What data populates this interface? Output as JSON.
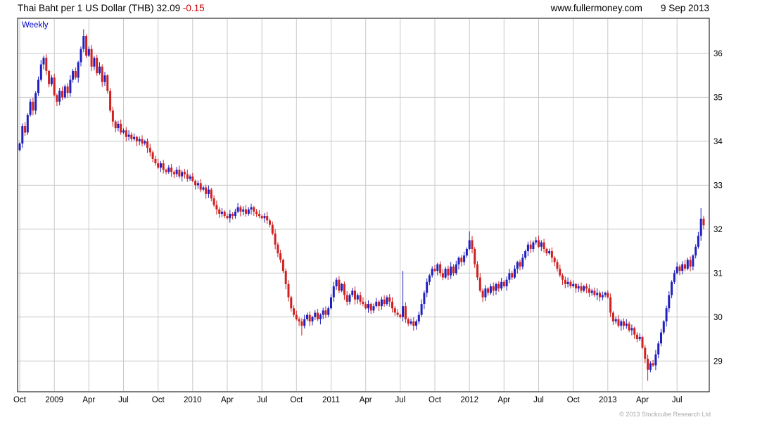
{
  "header": {
    "title": "Thai Baht per 1 US Dollar (THB)",
    "price": "32.09",
    "change": "-0.15",
    "site": "www.fullermoney.com",
    "date": "9 Sep 2013"
  },
  "chart": {
    "frequency_label": "Weekly",
    "copyright": "© 2013 Stockcube Research Ltd"
  },
  "chart_data": {
    "type": "candlestick",
    "frequency": "weekly",
    "title": "Thai Baht per 1 US Dollar (THB)",
    "last_close": 32.09,
    "last_change": -0.15,
    "date_range": "Oct 2008 - Sep 2013",
    "grid": true,
    "y_axis": {
      "side": "right",
      "ticks": [
        29,
        30,
        31,
        32,
        33,
        34,
        35,
        36
      ],
      "plot_min": 28.3,
      "plot_max": 36.8
    },
    "x_axis": {
      "ticks": [
        {
          "label": "Oct",
          "week": 0
        },
        {
          "label": "2009",
          "week": 13
        },
        {
          "label": "Apr",
          "week": 26
        },
        {
          "label": "Jul",
          "week": 39
        },
        {
          "label": "Oct",
          "week": 52
        },
        {
          "label": "2010",
          "week": 65
        },
        {
          "label": "Apr",
          "week": 78
        },
        {
          "label": "Jul",
          "week": 91
        },
        {
          "label": "Oct",
          "week": 104
        },
        {
          "label": "2011",
          "week": 117
        },
        {
          "label": "Apr",
          "week": 130
        },
        {
          "label": "Jul",
          "week": 143
        },
        {
          "label": "Oct",
          "week": 156
        },
        {
          "label": "2012",
          "week": 169
        },
        {
          "label": "Apr",
          "week": 182
        },
        {
          "label": "Jul",
          "week": 195
        },
        {
          "label": "Oct",
          "week": 208
        },
        {
          "label": "2013",
          "week": 221
        },
        {
          "label": "Apr",
          "week": 234
        },
        {
          "label": "Jul",
          "week": 247
        }
      ]
    },
    "first_open": 33.8,
    "weekly_closes": [
      33.95,
      34.35,
      34.2,
      34.6,
      34.9,
      34.7,
      35.1,
      35.4,
      35.75,
      35.9,
      35.6,
      35.3,
      35.45,
      35.05,
      34.9,
      35.15,
      35.0,
      35.25,
      35.1,
      35.4,
      35.6,
      35.45,
      35.8,
      36.1,
      36.4,
      35.95,
      36.1,
      35.7,
      35.9,
      35.55,
      35.7,
      35.35,
      35.5,
      35.15,
      34.7,
      34.45,
      34.3,
      34.4,
      34.2,
      34.25,
      34.1,
      34.15,
      34.05,
      34.1,
      34.0,
      34.05,
      33.95,
      34.0,
      33.85,
      33.75,
      33.6,
      33.5,
      33.4,
      33.5,
      33.35,
      33.3,
      33.4,
      33.3,
      33.25,
      33.35,
      33.2,
      33.3,
      33.25,
      33.15,
      33.2,
      33.1,
      33.0,
      33.05,
      32.9,
      32.95,
      32.8,
      32.9,
      32.7,
      32.55,
      32.45,
      32.35,
      32.4,
      32.3,
      32.25,
      32.35,
      32.3,
      32.4,
      32.5,
      32.4,
      32.45,
      32.35,
      32.45,
      32.5,
      32.4,
      32.35,
      32.3,
      32.25,
      32.3,
      32.2,
      32.1,
      31.9,
      31.65,
      31.45,
      31.3,
      31.05,
      30.75,
      30.45,
      30.2,
      30.05,
      29.95,
      29.9,
      29.8,
      29.95,
      30.05,
      29.9,
      30.0,
      30.1,
      29.95,
      30.05,
      30.15,
      30.05,
      30.2,
      30.45,
      30.7,
      30.85,
      30.6,
      30.75,
      30.5,
      30.35,
      30.5,
      30.6,
      30.4,
      30.5,
      30.35,
      30.3,
      30.2,
      30.3,
      30.15,
      30.25,
      30.35,
      30.25,
      30.4,
      30.3,
      30.45,
      30.35,
      30.2,
      30.1,
      30.05,
      30.0,
      30.25,
      29.95,
      29.85,
      29.9,
      29.8,
      29.9,
      30.05,
      30.3,
      30.55,
      30.8,
      30.95,
      31.1,
      31.05,
      31.2,
      31.0,
      30.9,
      31.1,
      30.95,
      31.15,
      31.0,
      31.2,
      31.35,
      31.25,
      31.4,
      31.55,
      31.75,
      31.55,
      31.2,
      30.9,
      30.6,
      30.45,
      30.65,
      30.55,
      30.7,
      30.6,
      30.75,
      30.65,
      30.8,
      30.7,
      30.85,
      31.0,
      30.9,
      31.1,
      31.25,
      31.15,
      31.35,
      31.5,
      31.65,
      31.55,
      31.7,
      31.75,
      31.6,
      31.7,
      31.55,
      31.45,
      31.5,
      31.35,
      31.25,
      31.1,
      30.95,
      30.85,
      30.75,
      30.8,
      30.7,
      30.75,
      30.65,
      30.7,
      30.6,
      30.7,
      30.65,
      30.55,
      30.6,
      30.5,
      30.55,
      30.45,
      30.5,
      30.55,
      30.45,
      30.1,
      29.9,
      29.95,
      29.8,
      29.9,
      29.8,
      29.85,
      29.7,
      29.75,
      29.6,
      29.5,
      29.55,
      29.3,
      29.05,
      28.8,
      28.95,
      28.9,
      29.15,
      29.4,
      29.65,
      29.9,
      30.2,
      30.5,
      30.8,
      31.0,
      31.15,
      31.05,
      31.2,
      31.1,
      31.3,
      31.15,
      31.4,
      31.6,
      31.85,
      32.24,
      32.09
    ],
    "special_wicks": {
      "24": {
        "high": 36.55
      },
      "106": {
        "low": 29.58
      },
      "144": {
        "high": 31.05
      },
      "169": {
        "high": 31.95
      },
      "236": {
        "low": 28.55
      },
      "256": {
        "high": 32.48
      }
    },
    "colors": {
      "up": "#2020c0",
      "down": "#d02020",
      "grid": "#c9c9c9",
      "border": "#000000",
      "axis_text": "#000000",
      "change_text": "#cc0000",
      "frequency_text": "#0000cc"
    }
  }
}
